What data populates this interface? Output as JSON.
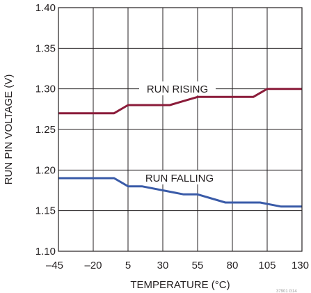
{
  "chart_data": {
    "type": "line",
    "xlabel": "TEMPERATURE (°C)",
    "ylabel": "RUN PIN VOLTAGE (V)",
    "xlim": [
      -45,
      130
    ],
    "ylim": [
      1.1,
      1.4
    ],
    "grid": true,
    "x_ticks": [
      -45,
      -20,
      5,
      30,
      55,
      80,
      105,
      130
    ],
    "x_tick_labels": [
      "–45",
      "–20",
      "5",
      "30",
      "55",
      "80",
      "105",
      "130"
    ],
    "y_ticks": [
      1.1,
      1.15,
      1.2,
      1.25,
      1.3,
      1.35,
      1.4
    ],
    "y_tick_labels": [
      "1.10",
      "1.15",
      "1.20",
      "1.25",
      "1.30",
      "1.35",
      "1.40"
    ],
    "series": [
      {
        "name": "RUN RISING",
        "color": "#8b1c3a",
        "x": [
          -45,
          -5,
          5,
          35,
          55,
          95,
          105,
          130
        ],
        "y": [
          1.27,
          1.27,
          1.28,
          1.28,
          1.29,
          1.29,
          1.3,
          1.3
        ]
      },
      {
        "name": "RUN FALLING",
        "color": "#3a5ba8",
        "x": [
          -45,
          -5,
          5,
          15,
          45,
          55,
          75,
          100,
          115,
          130
        ],
        "y": [
          1.19,
          1.19,
          1.18,
          1.18,
          1.17,
          1.17,
          1.16,
          1.16,
          1.155,
          1.155
        ]
      }
    ],
    "figure_id": "37901 G14"
  }
}
